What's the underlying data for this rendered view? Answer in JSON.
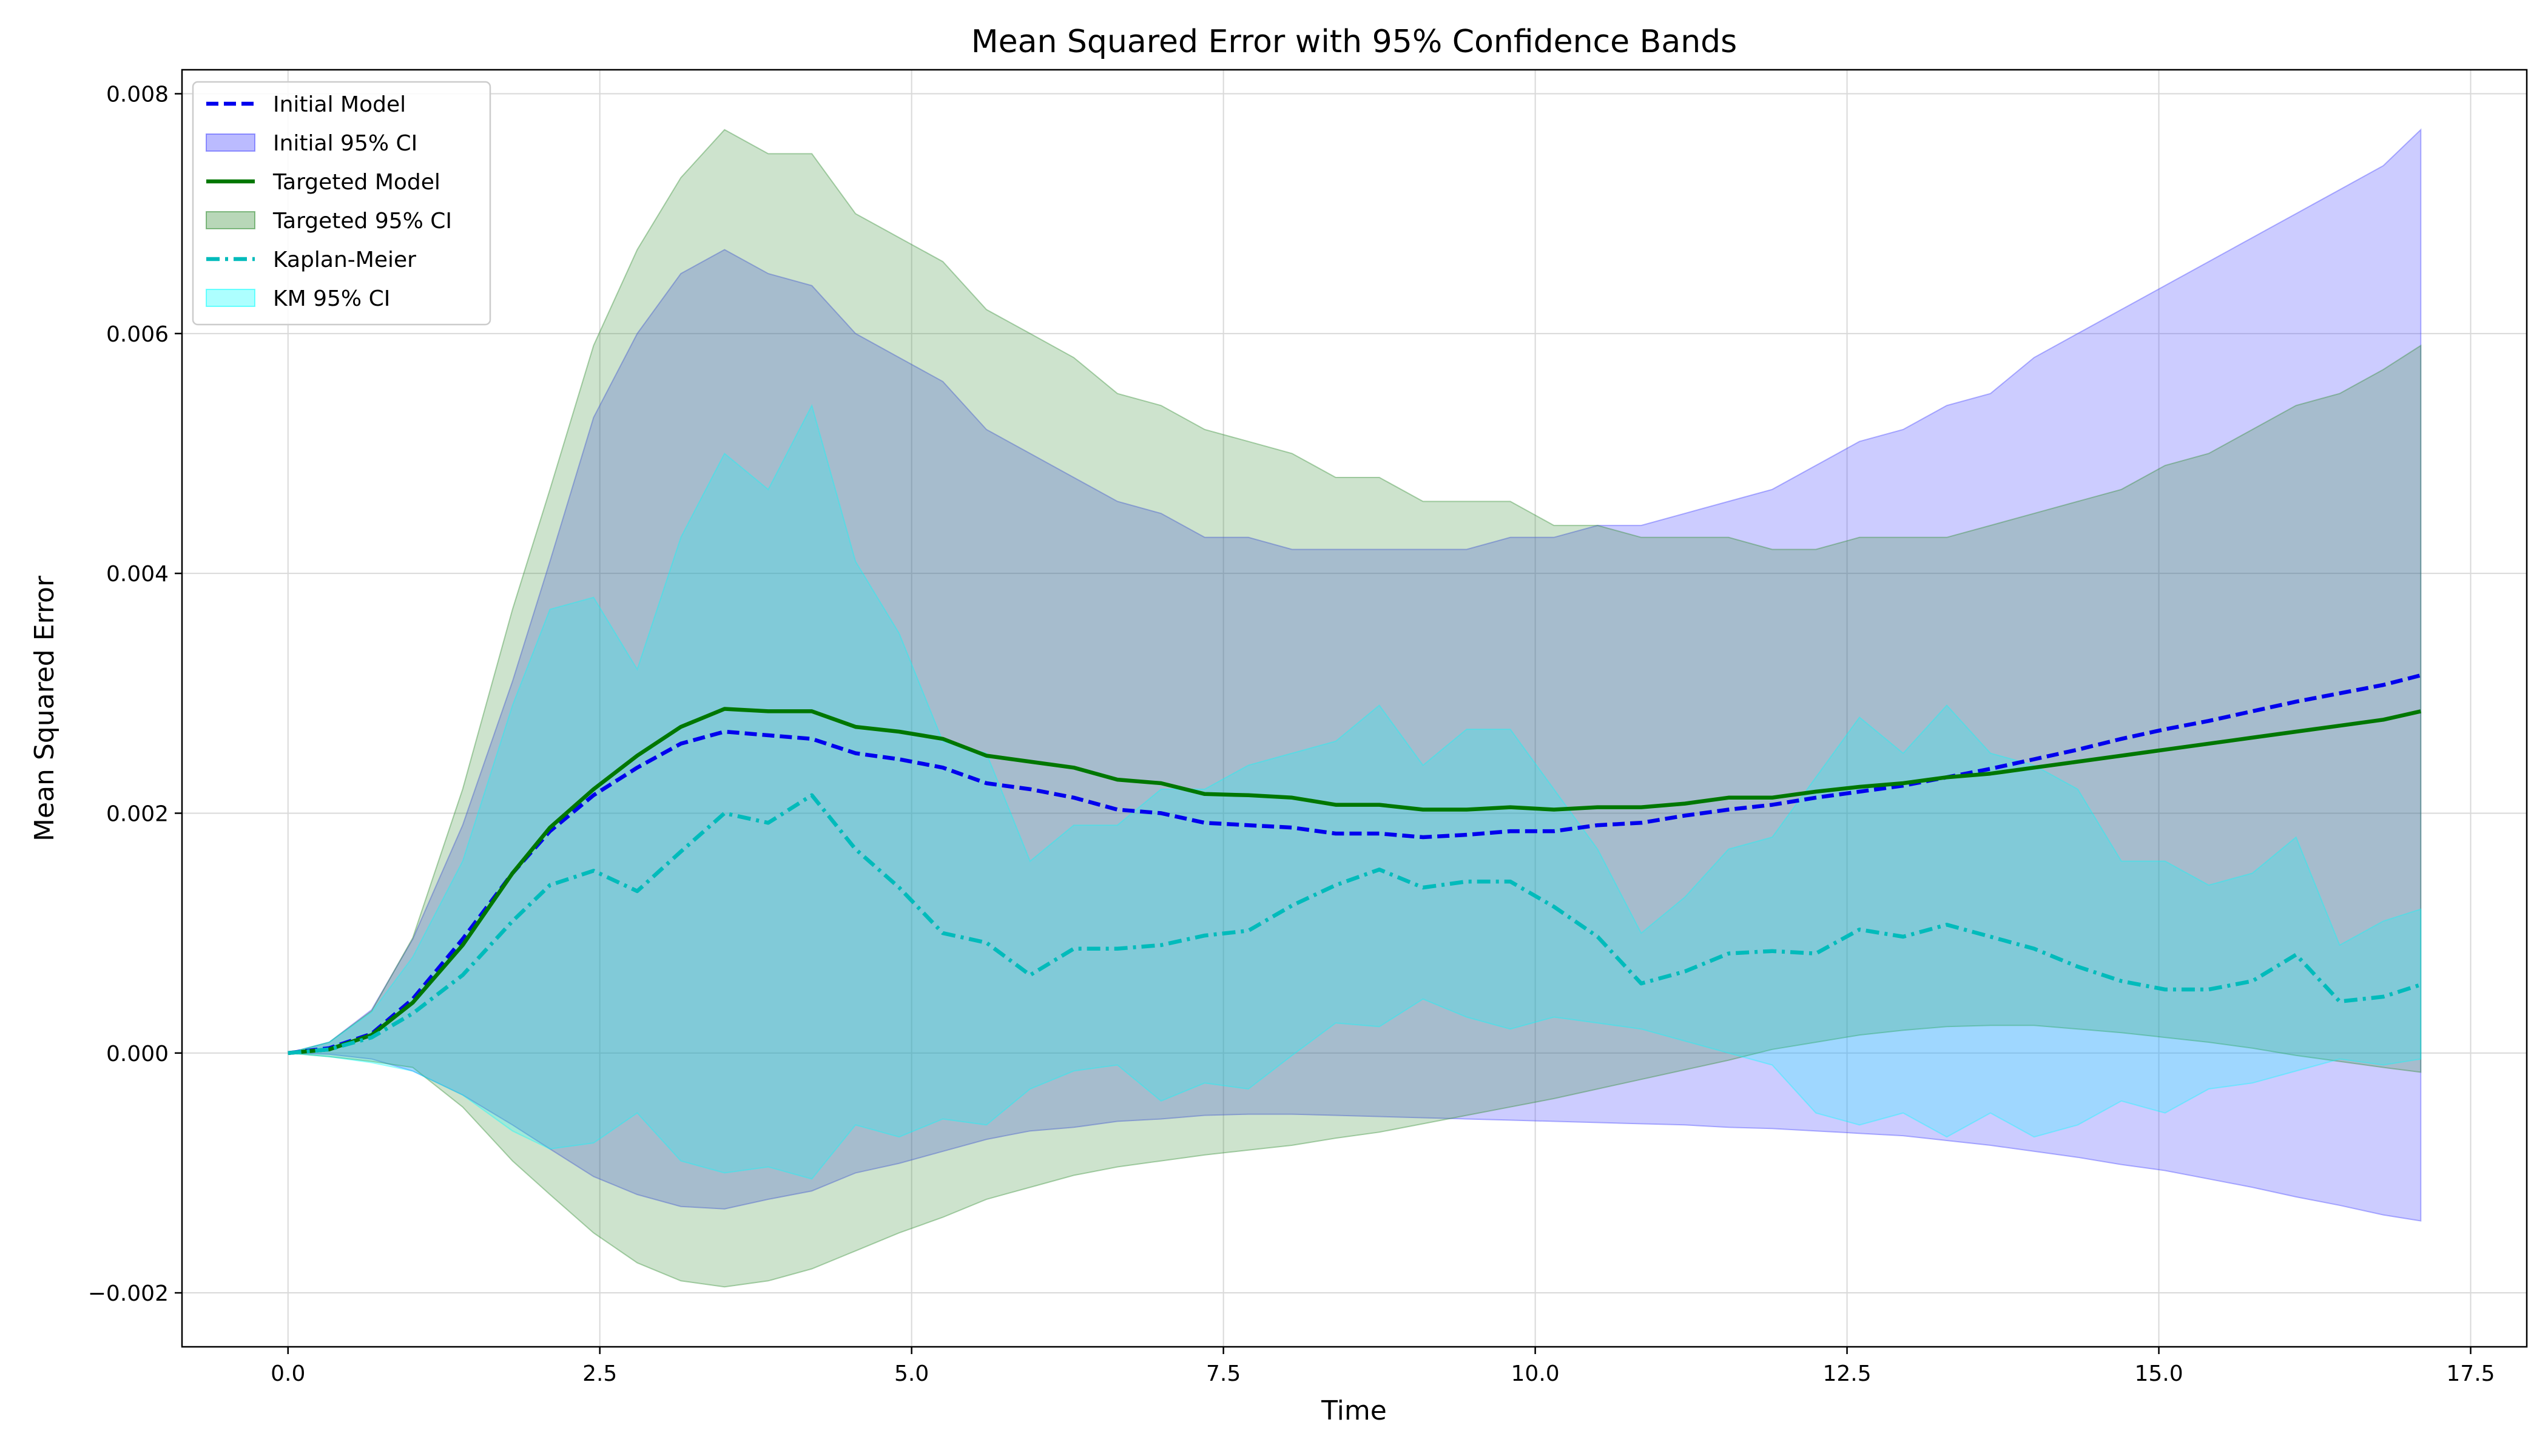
{
  "chart_data": {
    "type": "line",
    "title": "Mean Squared Error with 95% Confidence Bands",
    "xlabel": "Time",
    "ylabel": "Mean Squared Error",
    "xlim": [
      -0.85,
      17.95
    ],
    "ylim": [
      -0.00245,
      0.0082
    ],
    "xticks": [
      0.0,
      2.5,
      5.0,
      7.5,
      10.0,
      12.5,
      15.0,
      17.5
    ],
    "xtick_labels": [
      "0.0",
      "2.5",
      "5.0",
      "7.5",
      "10.0",
      "12.5",
      "15.0",
      "17.5"
    ],
    "yticks": [
      -0.002,
      0.0,
      0.002,
      0.004,
      0.006,
      0.008
    ],
    "ytick_labels": [
      "−0.002",
      "0.000",
      "0.002",
      "0.004",
      "0.006",
      "0.008"
    ],
    "grid": true,
    "legend_position": "top-left",
    "x": [
      0.0,
      0.33,
      0.67,
      1.0,
      1.4,
      1.8,
      2.1,
      2.45,
      2.8,
      3.15,
      3.5,
      3.85,
      4.2,
      4.55,
      4.9,
      5.25,
      5.6,
      5.95,
      6.3,
      6.65,
      7.0,
      7.35,
      7.7,
      8.05,
      8.4,
      8.75,
      9.1,
      9.45,
      9.8,
      10.15,
      10.5,
      10.85,
      11.2,
      11.55,
      11.9,
      12.25,
      12.6,
      12.95,
      13.3,
      13.65,
      14.0,
      14.35,
      14.7,
      15.05,
      15.4,
      15.75,
      16.1,
      16.45,
      16.8,
      17.1
    ],
    "series": [
      {
        "name": "Initial Model",
        "style": "dashed",
        "color": "#0000ee",
        "values": [
          0.0,
          4e-05,
          0.00016,
          0.00045,
          0.00095,
          0.0015,
          0.00185,
          0.00215,
          0.00238,
          0.00258,
          0.00268,
          0.00265,
          0.00262,
          0.0025,
          0.00245,
          0.00238,
          0.00225,
          0.0022,
          0.00213,
          0.00203,
          0.002,
          0.00192,
          0.0019,
          0.00188,
          0.00183,
          0.00183,
          0.0018,
          0.00182,
          0.00185,
          0.00185,
          0.0019,
          0.00192,
          0.00198,
          0.00203,
          0.00207,
          0.00213,
          0.00218,
          0.00223,
          0.0023,
          0.00237,
          0.00245,
          0.00253,
          0.00262,
          0.0027,
          0.00277,
          0.00285,
          0.00293,
          0.003,
          0.00307,
          0.00315
        ]
      },
      {
        "name": "Targeted Model",
        "style": "solid",
        "color": "#007700",
        "values": [
          0.0,
          3e-05,
          0.00015,
          0.00042,
          0.0009,
          0.0015,
          0.00188,
          0.0022,
          0.00248,
          0.00272,
          0.00287,
          0.00285,
          0.00285,
          0.00272,
          0.00268,
          0.00262,
          0.00248,
          0.00243,
          0.00238,
          0.00228,
          0.00225,
          0.00216,
          0.00215,
          0.00213,
          0.00207,
          0.00207,
          0.00203,
          0.00203,
          0.00205,
          0.00203,
          0.00205,
          0.00205,
          0.00208,
          0.00213,
          0.00213,
          0.00218,
          0.00222,
          0.00225,
          0.0023,
          0.00233,
          0.00238,
          0.00243,
          0.00248,
          0.00253,
          0.00258,
          0.00263,
          0.00268,
          0.00273,
          0.00278,
          0.00285
        ]
      },
      {
        "name": "Kaplan-Meier",
        "style": "dashdot",
        "color": "#00bbbb",
        "values": [
          0.0,
          3e-05,
          0.00013,
          0.00033,
          0.00065,
          0.0011,
          0.0014,
          0.00152,
          0.00135,
          0.00168,
          0.002,
          0.00192,
          0.00215,
          0.0017,
          0.00138,
          0.001,
          0.00092,
          0.00065,
          0.00087,
          0.00087,
          0.0009,
          0.00098,
          0.00102,
          0.00123,
          0.0014,
          0.00153,
          0.00138,
          0.00143,
          0.00143,
          0.00122,
          0.00097,
          0.00058,
          0.00068,
          0.00083,
          0.00085,
          0.00083,
          0.00103,
          0.00097,
          0.00107,
          0.00097,
          0.00087,
          0.00072,
          0.0006,
          0.00053,
          0.00053,
          0.0006,
          0.00082,
          0.00043,
          0.00047,
          0.00057
        ]
      }
    ],
    "bands": [
      {
        "name": "Initial 95% CI",
        "color": "#5555ff",
        "opacity": 0.3,
        "lower": [
          0.0,
          -1e-05,
          -5e-05,
          -0.00015,
          -0.00035,
          -0.0006,
          -0.0008,
          -0.00103,
          -0.00118,
          -0.00128,
          -0.0013,
          -0.00122,
          -0.00115,
          -0.001,
          -0.00092,
          -0.00082,
          -0.00072,
          -0.00065,
          -0.00062,
          -0.00057,
          -0.00055,
          -0.00052,
          -0.00051,
          -0.00051,
          -0.00052,
          -0.00053,
          -0.00054,
          -0.00055,
          -0.00056,
          -0.00057,
          -0.00058,
          -0.00059,
          -0.0006,
          -0.00062,
          -0.00063,
          -0.00065,
          -0.00067,
          -0.00069,
          -0.00073,
          -0.00077,
          -0.00082,
          -0.00087,
          -0.00093,
          -0.00098,
          -0.00105,
          -0.00112,
          -0.0012,
          -0.00127,
          -0.00135,
          -0.0014
        ],
        "upper": [
          0.0,
          9e-05,
          0.00036,
          0.00095,
          0.0019,
          0.0031,
          0.0041,
          0.0053,
          0.006,
          0.0065,
          0.0067,
          0.0065,
          0.0064,
          0.006,
          0.0058,
          0.0056,
          0.0052,
          0.005,
          0.0048,
          0.0046,
          0.0045,
          0.0043,
          0.0043,
          0.0042,
          0.0042,
          0.0042,
          0.0042,
          0.0042,
          0.0043,
          0.0043,
          0.0044,
          0.0044,
          0.0045,
          0.0046,
          0.0047,
          0.0049,
          0.0051,
          0.0052,
          0.0054,
          0.0055,
          0.0058,
          0.006,
          0.0062,
          0.0064,
          0.0066,
          0.0068,
          0.007,
          0.0072,
          0.0074,
          0.0077
        ]
      },
      {
        "name": "Targeted 95% CI",
        "color": "#2e8b2e",
        "opacity": 0.24,
        "lower": [
          0.0,
          -3e-05,
          -7e-05,
          -0.00012,
          -0.00045,
          -0.0009,
          -0.00118,
          -0.0015,
          -0.00175,
          -0.0019,
          -0.00195,
          -0.0019,
          -0.0018,
          -0.00165,
          -0.0015,
          -0.00137,
          -0.00122,
          -0.00112,
          -0.00102,
          -0.00095,
          -0.0009,
          -0.00085,
          -0.00081,
          -0.00077,
          -0.00071,
          -0.00066,
          -0.00059,
          -0.00052,
          -0.00045,
          -0.00038,
          -0.0003,
          -0.00022,
          -0.00014,
          -6e-05,
          3e-05,
          9e-05,
          0.00015,
          0.00019,
          0.00022,
          0.00023,
          0.00023,
          0.0002,
          0.00017,
          0.00013,
          9e-05,
          4e-05,
          -2e-05,
          -7e-05,
          -0.00012,
          -0.00016
        ],
        "upper": [
          0.0,
          9e-05,
          0.00035,
          0.00096,
          0.0022,
          0.0037,
          0.0047,
          0.0059,
          0.0067,
          0.0073,
          0.0077,
          0.0075,
          0.0075,
          0.007,
          0.0068,
          0.0066,
          0.0062,
          0.006,
          0.0058,
          0.0055,
          0.0054,
          0.0052,
          0.0051,
          0.005,
          0.0048,
          0.0048,
          0.0046,
          0.0046,
          0.0046,
          0.0044,
          0.0044,
          0.0043,
          0.0043,
          0.0043,
          0.0042,
          0.0042,
          0.0043,
          0.0043,
          0.0043,
          0.0044,
          0.0045,
          0.0046,
          0.0047,
          0.0049,
          0.005,
          0.0052,
          0.0054,
          0.0055,
          0.0057,
          0.0059
        ]
      },
      {
        "name": "KM 95% CI",
        "color": "#00ffff",
        "opacity": 0.22,
        "lower": [
          0.0,
          -3e-05,
          -8e-05,
          -0.00015,
          -0.00035,
          -0.00065,
          -0.0008,
          -0.00075,
          -0.0005,
          -0.0009,
          -0.001,
          -0.00095,
          -0.00105,
          -0.0006,
          -0.0007,
          -0.00055,
          -0.0006,
          -0.0003,
          -0.00015,
          -0.0001,
          -0.0004,
          -0.00025,
          -0.0003,
          -2e-05,
          0.00025,
          0.00022,
          0.00045,
          0.0003,
          0.0002,
          0.0003,
          0.00025,
          0.0002,
          0.0001,
          0.0,
          -0.0001,
          -0.0005,
          -0.0006,
          -0.0005,
          -0.0007,
          -0.0005,
          -0.0007,
          -0.0006,
          -0.0004,
          -0.0005,
          -0.0003,
          -0.00025,
          -0.00015,
          -5e-05,
          -0.0001,
          -5e-05
        ],
        "upper": [
          0.0,
          9e-05,
          0.00034,
          0.0008,
          0.0016,
          0.0029,
          0.0037,
          0.0038,
          0.0032,
          0.0043,
          0.005,
          0.0047,
          0.0054,
          0.0041,
          0.0035,
          0.0026,
          0.0025,
          0.0016,
          0.0019,
          0.0019,
          0.0022,
          0.0022,
          0.0024,
          0.0025,
          0.0026,
          0.0029,
          0.0024,
          0.0027,
          0.0027,
          0.0022,
          0.0017,
          0.001,
          0.0013,
          0.0017,
          0.0018,
          0.0023,
          0.0028,
          0.0025,
          0.0029,
          0.0025,
          0.0024,
          0.0022,
          0.0016,
          0.0016,
          0.0014,
          0.0015,
          0.0018,
          0.0009,
          0.0011,
          0.0012
        ]
      }
    ],
    "legend": [
      {
        "label": "Initial Model",
        "kind": "line",
        "ref": "Initial Model"
      },
      {
        "label": "Initial 95% CI",
        "kind": "patch",
        "ref": "Initial 95% CI"
      },
      {
        "label": "Targeted Model",
        "kind": "line",
        "ref": "Targeted Model"
      },
      {
        "label": "Targeted 95% CI",
        "kind": "patch",
        "ref": "Targeted 95% CI"
      },
      {
        "label": "Kaplan-Meier",
        "kind": "line",
        "ref": "Kaplan-Meier"
      },
      {
        "label": "KM 95% CI",
        "kind": "patch",
        "ref": "KM 95% CI"
      }
    ]
  }
}
